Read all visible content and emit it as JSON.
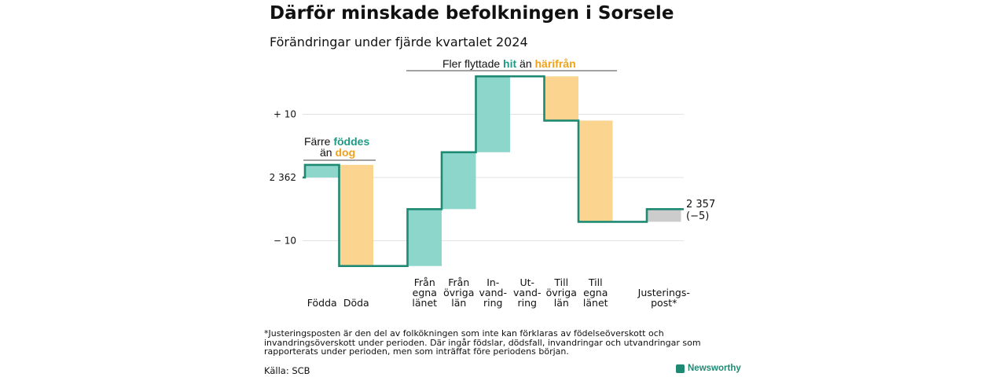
{
  "title": "Därför minskade befolkningen i Sorsele",
  "subtitle": "Förändringar under fjärde kvartalet 2024",
  "colors": {
    "increase": "#8dd6cc",
    "decrease": "#fbd590",
    "adjustment": "#cccccc",
    "line": "#1f8a74",
    "accent_green": "#1f9a84",
    "accent_orange": "#f0a21a"
  },
  "annotations": {
    "births": {
      "prefix": "Färre ",
      "highlight1": "föddes",
      "middle": "än ",
      "highlight2": "dog"
    },
    "migration": {
      "prefix": "Fler flyttade ",
      "highlight1": "hit",
      "middle": " än ",
      "highlight2": "härifrån"
    }
  },
  "end_label": {
    "value": "2 357",
    "change": "(−5)"
  },
  "footnote": "*Justeringsposten är den del av folkökningen som inte kan förklaras av födelseöverskott och invandringsöverskott under perioden. Där ingår födslar, dödsfall, invandringar och utvandringar som rapporterats under perioden, men som inträffat före periodens början.",
  "source": "Källa: SCB",
  "brand": "Newsworthy",
  "chart_data": {
    "type": "waterfall",
    "start_value": 2362,
    "end_value": 2357,
    "net_change": -5,
    "y_ticks": [
      {
        "value": 10,
        "label": "+ 10"
      },
      {
        "value": 0,
        "label": "2 362"
      },
      {
        "value": -10,
        "label": "− 10"
      }
    ],
    "ylim": [
      -15,
      17
    ],
    "categories": [
      {
        "label": [
          "Födda"
        ],
        "change": 2,
        "kind": "increase"
      },
      {
        "label": [
          "Döda"
        ],
        "change": -16,
        "kind": "decrease"
      },
      {
        "label": [],
        "change": 0,
        "kind": "gap"
      },
      {
        "label": [
          "Från",
          "egna",
          "länet"
        ],
        "change": 9,
        "kind": "increase"
      },
      {
        "label": [
          "Från",
          "övriga",
          "län"
        ],
        "change": 9,
        "kind": "increase"
      },
      {
        "label": [
          "In-",
          "vand-",
          "ring"
        ],
        "change": 12,
        "kind": "increase"
      },
      {
        "label": [
          "Ut-",
          "vand-",
          "ring"
        ],
        "change": 0,
        "kind": "decrease"
      },
      {
        "label": [
          "Till",
          "övriga",
          "län"
        ],
        "change": -7,
        "kind": "decrease"
      },
      {
        "label": [
          "Till",
          "egna",
          "länet"
        ],
        "change": -16,
        "kind": "decrease"
      },
      {
        "label": [],
        "change": 0,
        "kind": "gap"
      },
      {
        "label": [
          "Justerings-",
          "post*"
        ],
        "change": 2,
        "kind": "adjustment"
      }
    ]
  }
}
